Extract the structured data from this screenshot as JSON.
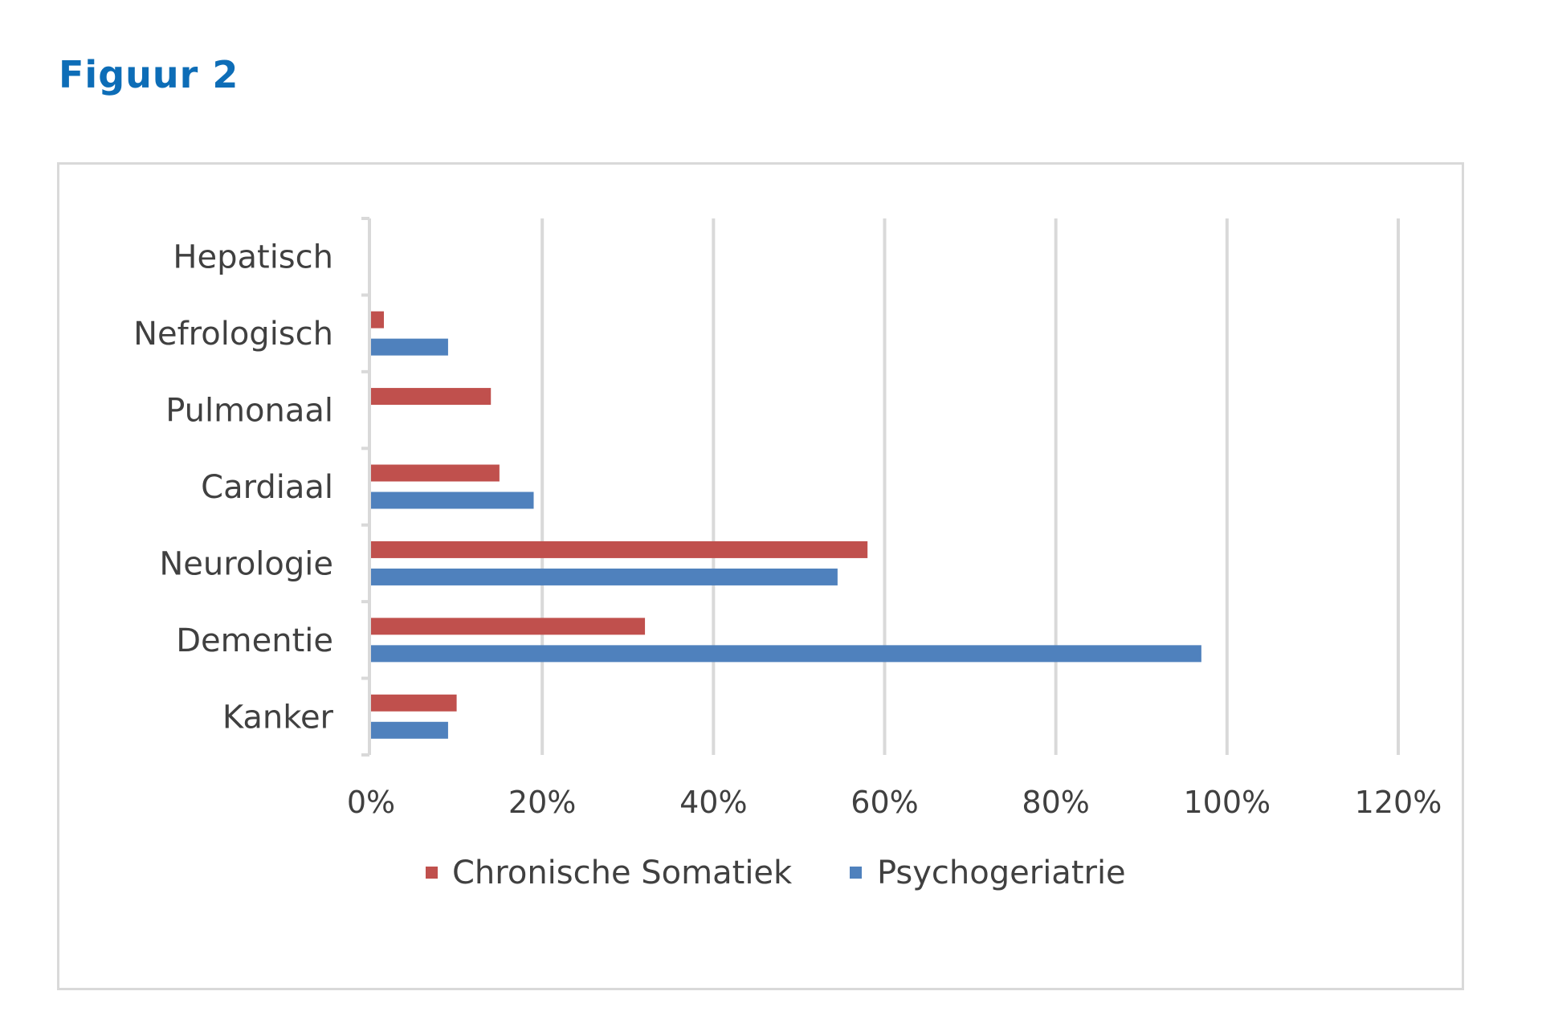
{
  "figure_title": "Figuur 2",
  "colors": {
    "title": "#0d6db7",
    "chronische_somatiek": "#c0504d",
    "psychogeriatrie": "#4f81bd",
    "gridline": "#d9d9d9",
    "text": "#404040"
  },
  "chart_data": {
    "type": "bar",
    "orientation": "horizontal",
    "title": "",
    "xlabel": "",
    "ylabel": "",
    "categories": [
      "Hepatisch",
      "Nefrologisch",
      "Pulmonaal",
      "Cardiaal",
      "Neurologie",
      "Dementie",
      "Kanker"
    ],
    "series": [
      {
        "name": "Chronische Somatiek",
        "color": "#c0504d",
        "values": [
          0,
          1.5,
          14,
          15,
          58,
          32,
          10
        ]
      },
      {
        "name": "Psychogeriatrie",
        "color": "#4f81bd",
        "values": [
          0,
          9,
          0,
          19,
          54.5,
          97,
          9
        ]
      }
    ],
    "xlim": [
      0,
      120
    ],
    "xticks": [
      0,
      20,
      40,
      60,
      80,
      100,
      120
    ],
    "xtick_labels": [
      "0%",
      "20%",
      "40%",
      "60%",
      "80%",
      "100%",
      "120%"
    ],
    "grid": "vertical",
    "legend_position": "bottom"
  }
}
